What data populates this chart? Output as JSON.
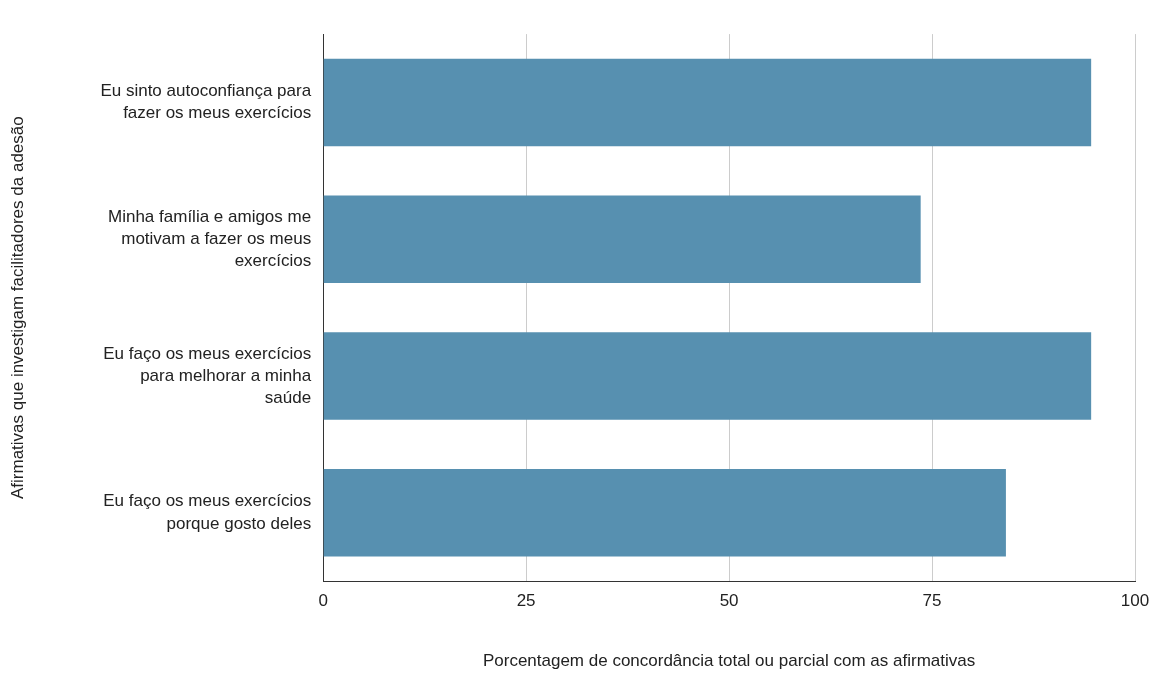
{
  "chart_data": {
    "type": "bar",
    "orientation": "horizontal",
    "xlabel": "Porcentagem de concordância total ou parcial com as afirmativas",
    "ylabel": "Afirmativas que investigam facilitadores da adesão",
    "categories": [
      "Eu sinto autoconfiança para fazer os meus exercícios",
      "Minha família e amigos me motivam a fazer os meus exercícios",
      "Eu faço os meus exercícios para melhorar a minha saúde",
      "Eu faço os meus exercícios porque gosto deles"
    ],
    "values": [
      94.6,
      73.6,
      94.6,
      84.1
    ],
    "color": "#5790b0",
    "xlim": [
      0,
      100
    ],
    "xticks": [
      0,
      25,
      50,
      75,
      100
    ],
    "grid": "x",
    "legend": false
  }
}
